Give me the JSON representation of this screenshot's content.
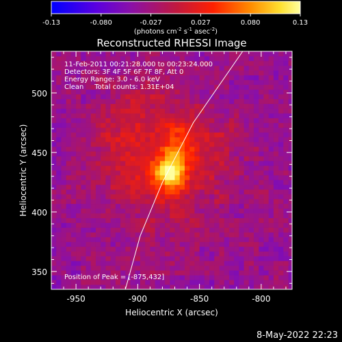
{
  "chart_data": {
    "type": "heatmap",
    "title": "Reconstructed RHESSI Image",
    "xlabel": "Heliocentric X (arcsec)",
    "ylabel": "Heliocentric Y (arcsec)",
    "xlim": [
      -970,
      -775
    ],
    "ylim": [
      335,
      535
    ],
    "xticks": [
      -950,
      -900,
      -850,
      -800
    ],
    "yticks": [
      350,
      400,
      450,
      500
    ],
    "colorbar": {
      "min": -0.13,
      "max": 0.13,
      "ticks": [
        "-0.13",
        "-0.080",
        "-0.027",
        "0.027",
        "0.080",
        "0.13"
      ],
      "unit_text": "(photons cm",
      "unit_exp1": "-2",
      "unit_s": " s",
      "unit_exp2": "-1",
      "unit_asec": " asec",
      "unit_exp3": "-2",
      "unit_end": ")"
    },
    "peak": {
      "x": -875,
      "y": 432,
      "value": 0.13
    },
    "sources": [
      {
        "x": -875,
        "y": 432,
        "sx": 9,
        "sy": 9,
        "amp": 0.11
      },
      {
        "x": -868,
        "y": 452,
        "sx": 7,
        "sy": 12,
        "amp": 0.05
      },
      {
        "x": -880,
        "y": 440,
        "sx": 35,
        "sy": 40,
        "amp": 0.045
      },
      {
        "x": -850,
        "y": 455,
        "sx": 25,
        "sy": 20,
        "amp": 0.02
      },
      {
        "x": -905,
        "y": 470,
        "sx": 25,
        "sy": 25,
        "amp": 0.02
      }
    ],
    "background_level": -0.035,
    "limb_curve_points": [
      [
        -910,
        335
      ],
      [
        -898,
        380
      ],
      [
        -880,
        425
      ],
      [
        -855,
        475
      ],
      [
        -815,
        535
      ]
    ],
    "annotations": [
      "11-Feb-2011 00:21:28.000 to 00:23:24.000",
      "Detectors: 3F 4F 5F 6F 7F 8F, Att 0",
      "Energy Range: 3.0 - 6.0 keV",
      "Clean     Total counts: 1.31E+04"
    ],
    "peak_label": "Position of Peak = [-875,432]"
  },
  "footer": {
    "timestamp": "8-May-2022 22:23"
  }
}
